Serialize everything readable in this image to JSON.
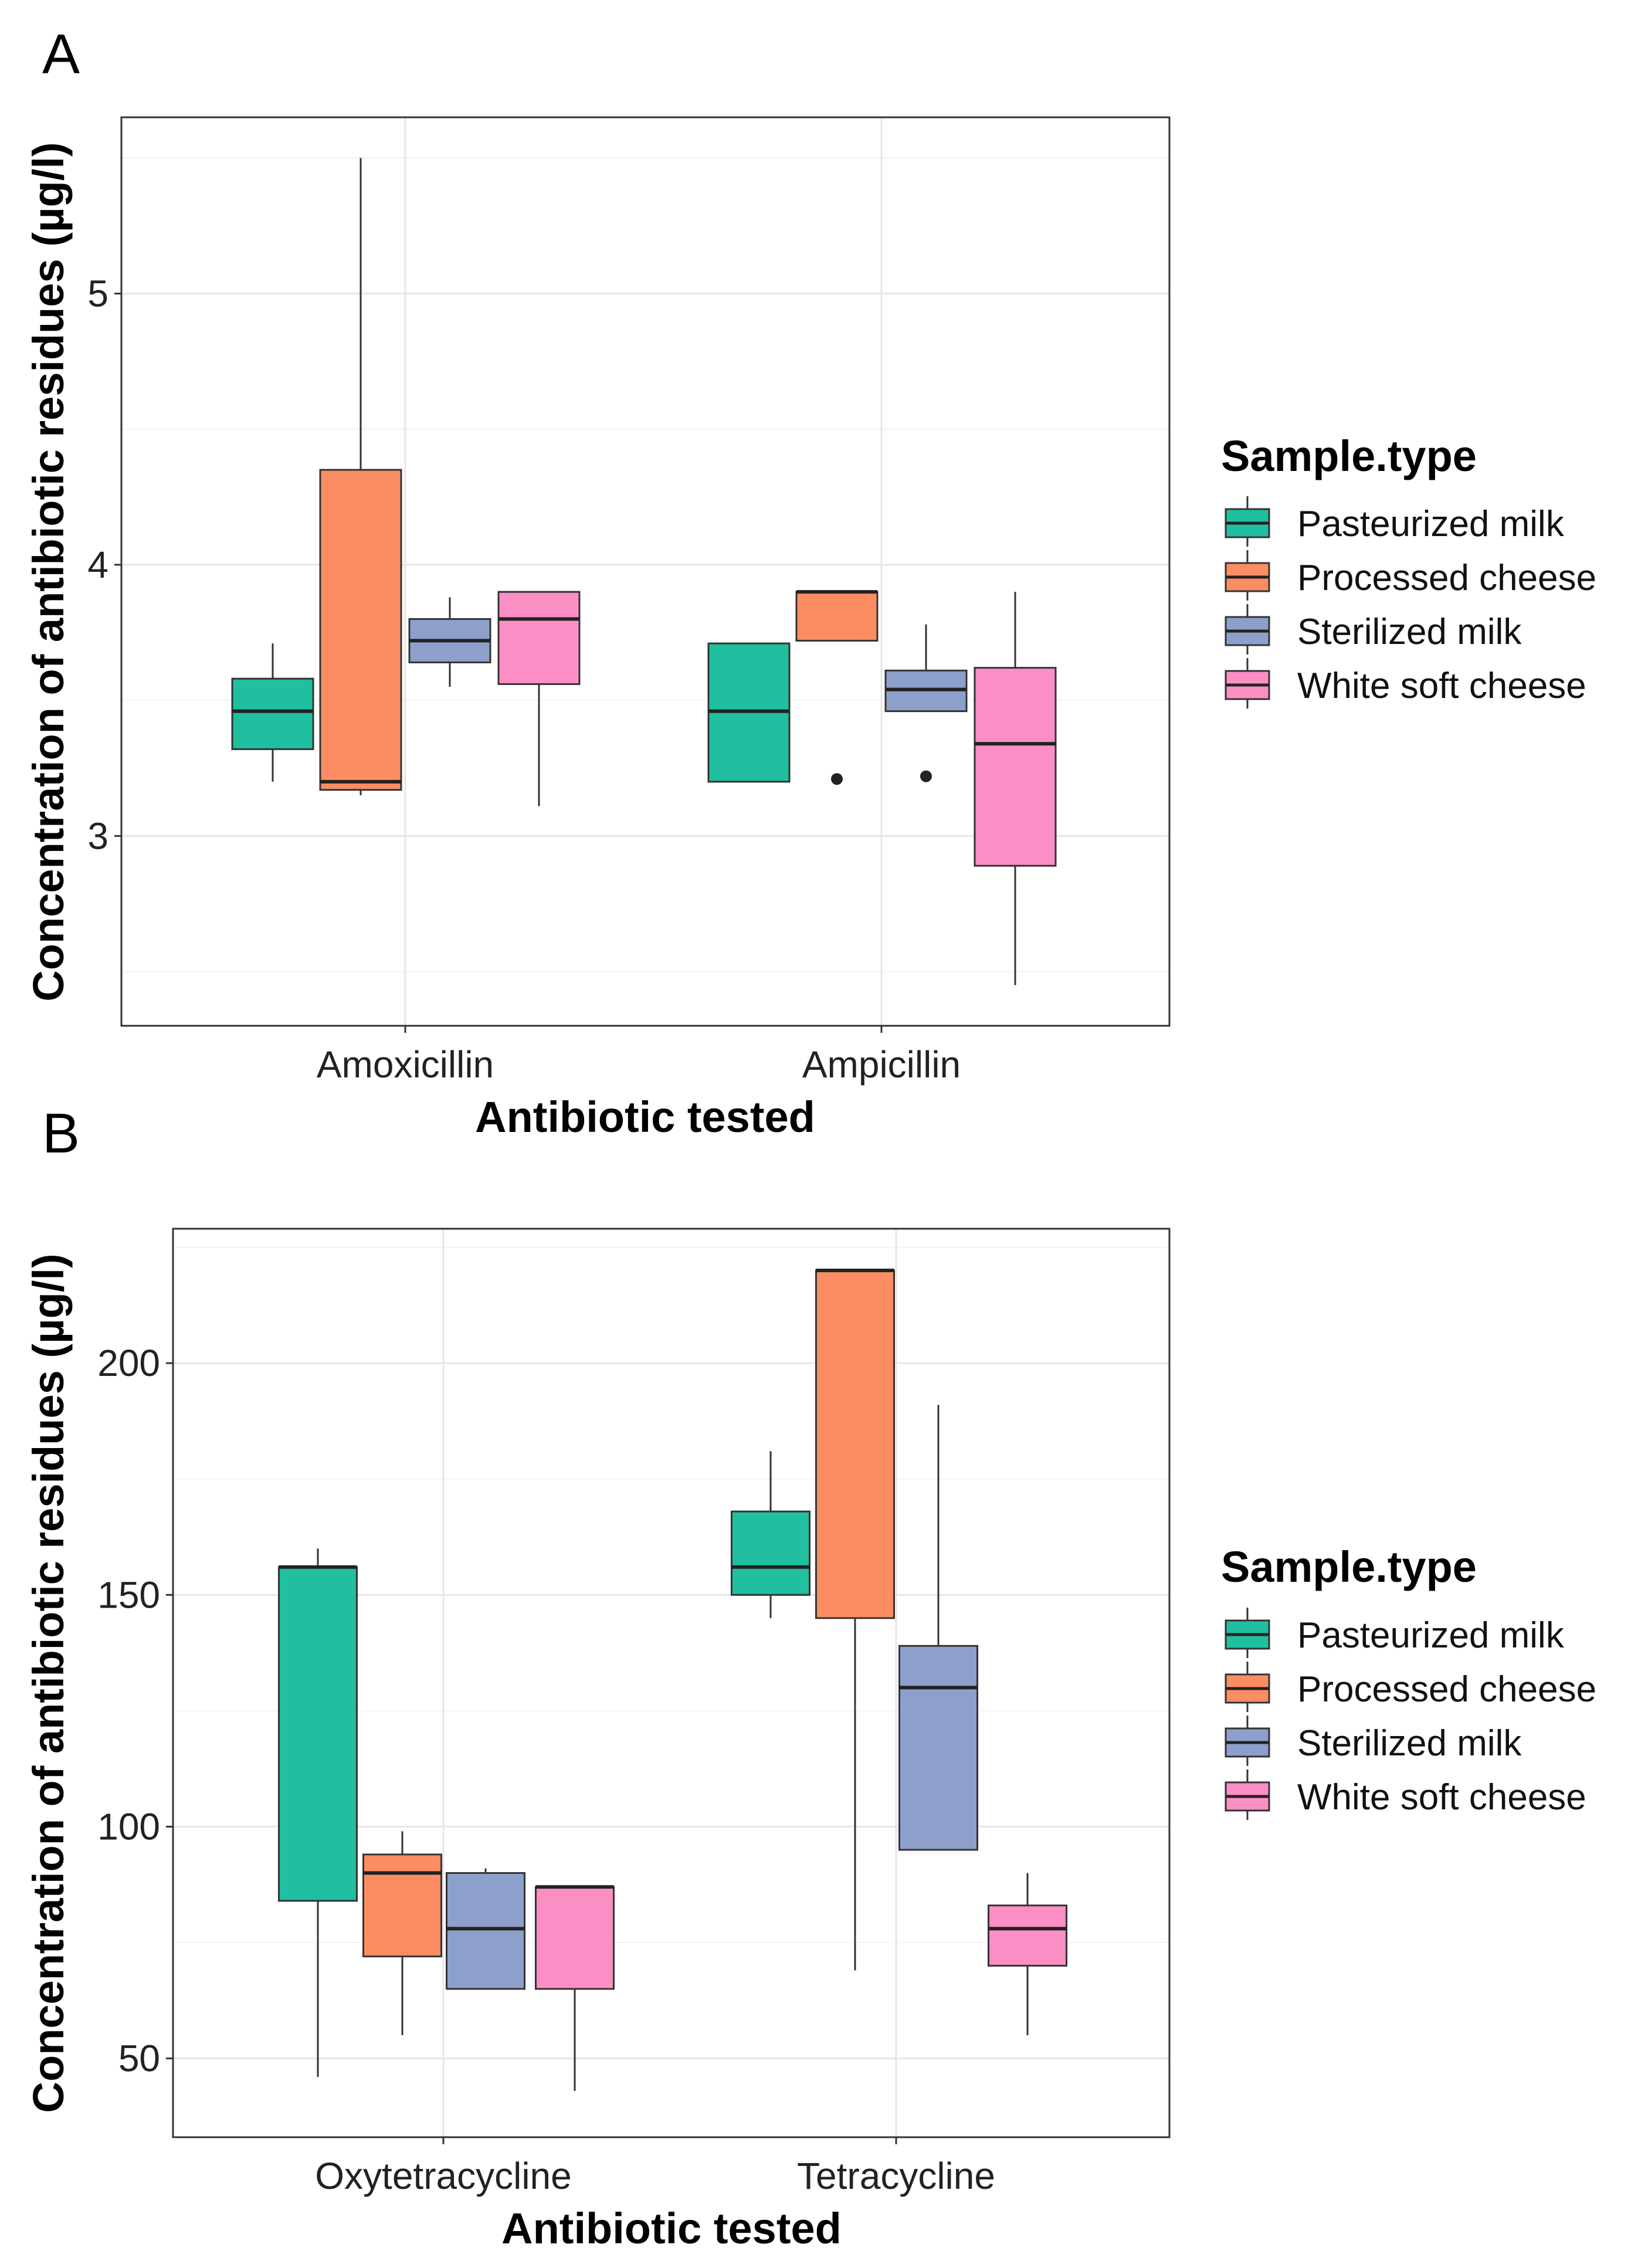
{
  "chart_data": [
    {
      "panel": "A",
      "type": "boxplot",
      "xlabel": "Antibiotic tested",
      "ylabel": "Concentration of antibiotic residues (µg/l)",
      "categories": [
        "Amoxicillin",
        "Ampicillin"
      ],
      "ylim": [
        2.3,
        5.65
      ],
      "yticks": [
        3,
        4,
        5
      ],
      "ytick_labels": [
        "3",
        "4",
        "5"
      ],
      "grid": true,
      "legend": {
        "title": "Sample.type",
        "position": "right"
      },
      "series": [
        {
          "name": "Pasteurized milk",
          "color": "#1fbf9f",
          "boxes": [
            {
              "min": 3.2,
              "q1": 3.32,
              "median": 3.46,
              "q3": 3.58,
              "max": 3.71,
              "outliers": []
            },
            {
              "min": 3.2,
              "q1": 3.2,
              "median": 3.46,
              "q3": 3.71,
              "max": 3.71,
              "outliers": []
            }
          ]
        },
        {
          "name": "Processed cheese",
          "color": "#fc8d62",
          "boxes": [
            {
              "min": 3.15,
              "q1": 3.17,
              "median": 3.2,
              "q3": 4.35,
              "max": 5.5,
              "outliers": []
            },
            {
              "min": 3.72,
              "q1": 3.72,
              "median": 3.9,
              "q3": 3.9,
              "max": 3.9,
              "outliers": [
                3.21
              ]
            }
          ]
        },
        {
          "name": "Sterilized milk",
          "color": "#8da0cb",
          "boxes": [
            {
              "min": 3.55,
              "q1": 3.64,
              "median": 3.72,
              "q3": 3.8,
              "max": 3.88,
              "outliers": []
            },
            {
              "min": 3.46,
              "q1": 3.46,
              "median": 3.54,
              "q3": 3.61,
              "max": 3.78,
              "outliers": [
                3.22
              ]
            }
          ]
        },
        {
          "name": "White soft cheese",
          "color": "#fc8ec6",
          "boxes": [
            {
              "min": 3.11,
              "q1": 3.56,
              "median": 3.8,
              "q3": 3.9,
              "max": 3.9,
              "outliers": []
            },
            {
              "min": 2.45,
              "q1": 2.89,
              "median": 3.34,
              "q3": 3.62,
              "max": 3.9,
              "outliers": []
            }
          ]
        }
      ]
    },
    {
      "panel": "B",
      "type": "boxplot",
      "xlabel": "Antibiotic tested",
      "ylabel": "Concentration of antibiotic residues (µg/l)",
      "categories": [
        "Oxytetracycline",
        "Tetracycline"
      ],
      "ylim": [
        33,
        229
      ],
      "yticks": [
        50,
        100,
        150,
        200
      ],
      "ytick_labels": [
        "50",
        "100",
        "150",
        "200"
      ],
      "grid": true,
      "legend": {
        "title": "Sample.type",
        "position": "right"
      },
      "series": [
        {
          "name": "Pasteurized milk",
          "color": "#1fbf9f",
          "boxes": [
            {
              "min": 46,
              "q1": 84,
              "median": 156,
              "q3": 156,
              "max": 160,
              "outliers": []
            },
            {
              "min": 145,
              "q1": 150,
              "median": 156,
              "q3": 168,
              "max": 181,
              "outliers": []
            }
          ]
        },
        {
          "name": "Processed cheese",
          "color": "#fc8d62",
          "boxes": [
            {
              "min": 55,
              "q1": 72,
              "median": 90,
              "q3": 94,
              "max": 99,
              "outliers": []
            },
            {
              "min": 69,
              "q1": 145,
              "median": 220,
              "q3": 220,
              "max": 220,
              "outliers": []
            }
          ]
        },
        {
          "name": "Sterilized milk",
          "color": "#8da0cb",
          "boxes": [
            {
              "min": 65,
              "q1": 65,
              "median": 78,
              "q3": 90,
              "max": 91,
              "outliers": []
            },
            {
              "min": 95,
              "q1": 95,
              "median": 130,
              "q3": 139,
              "max": 191,
              "outliers": []
            }
          ]
        },
        {
          "name": "White soft cheese",
          "color": "#fc8ec6",
          "boxes": [
            {
              "min": 43,
              "q1": 65,
              "median": 87,
              "q3": 87,
              "max": 87,
              "outliers": []
            },
            {
              "min": 55,
              "q1": 70,
              "median": 78,
              "q3": 83,
              "max": 90,
              "outliers": []
            }
          ]
        }
      ]
    }
  ]
}
